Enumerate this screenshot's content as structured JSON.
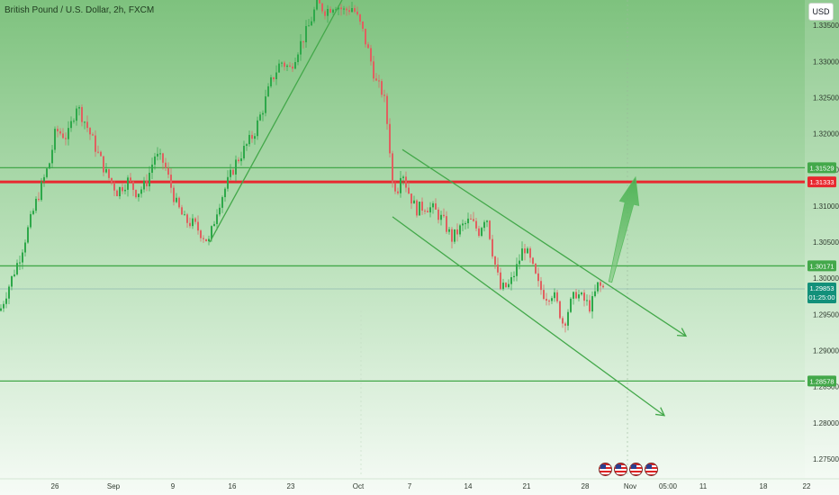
{
  "header": {
    "title": "British Pound / U.S. Dollar, 2h, FXCM",
    "currency_button": "USD"
  },
  "colors": {
    "bg_top": "#7ec27e",
    "bg_bottom": "#f6fbf6",
    "up_candle": "#2ea84a",
    "down_candle": "#e06060",
    "green_line": "#43a84a",
    "red_line": "#e8282f",
    "current_price_line": "#8fb8b0"
  },
  "chart_data": {
    "type": "candlestick",
    "symbol": "British Pound / U.S. Dollar, 2h, FXCM",
    "ylim": [
      1.2725,
      1.3385
    ],
    "y_ticks": [
      "1.33500",
      "1.33000",
      "1.32500",
      "1.32000",
      "1.31500",
      "1.31000",
      "1.30500",
      "1.30000",
      "1.29500",
      "1.29000",
      "1.28500",
      "1.28000",
      "1.27500"
    ],
    "x_ticks": [
      "26",
      "Sep",
      "9",
      "16",
      "23",
      "Oct",
      "7",
      "14",
      "21",
      "28",
      "Nov",
      "05:00",
      "11",
      "18",
      "22"
    ],
    "series_path": [
      [
        0,
        1.2955
      ],
      [
        10,
        1.299
      ],
      [
        22,
        1.303
      ],
      [
        40,
        1.3105
      ],
      [
        55,
        1.316
      ],
      [
        62,
        1.3205
      ],
      [
        75,
        1.3195
      ],
      [
        85,
        1.324
      ],
      [
        95,
        1.3215
      ],
      [
        108,
        1.3175
      ],
      [
        118,
        1.3145
      ],
      [
        130,
        1.312
      ],
      [
        142,
        1.3135
      ],
      [
        152,
        1.3118
      ],
      [
        162,
        1.313
      ],
      [
        172,
        1.317
      ],
      [
        182,
        1.316
      ],
      [
        195,
        1.3105
      ],
      [
        205,
        1.308
      ],
      [
        215,
        1.3075
      ],
      [
        225,
        1.306
      ],
      [
        232,
        1.305
      ],
      [
        242,
        1.31
      ],
      [
        252,
        1.313
      ],
      [
        262,
        1.316
      ],
      [
        272,
        1.318
      ],
      [
        282,
        1.32
      ],
      [
        292,
        1.3235
      ],
      [
        302,
        1.3275
      ],
      [
        312,
        1.33
      ],
      [
        322,
        1.329
      ],
      [
        332,
        1.332
      ],
      [
        342,
        1.3345
      ],
      [
        352,
        1.338
      ],
      [
        362,
        1.337
      ],
      [
        372,
        1.338
      ],
      [
        382,
        1.337
      ],
      [
        392,
        1.3375
      ],
      [
        402,
        1.3345
      ],
      [
        410,
        1.331
      ],
      [
        418,
        1.327
      ],
      [
        426,
        1.3255
      ],
      [
        432,
        1.3195
      ],
      [
        436,
        1.313
      ],
      [
        442,
        1.3125
      ],
      [
        446,
        1.3155
      ],
      [
        452,
        1.3125
      ],
      [
        462,
        1.3095
      ],
      [
        472,
        1.31
      ],
      [
        482,
        1.3095
      ],
      [
        492,
        1.308
      ],
      [
        502,
        1.3055
      ],
      [
        512,
        1.307
      ],
      [
        522,
        1.308
      ],
      [
        532,
        1.3065
      ],
      [
        540,
        1.309
      ],
      [
        548,
        1.303
      ],
      [
        556,
        1.2985
      ],
      [
        566,
        1.299
      ],
      [
        574,
        1.3015
      ],
      [
        582,
        1.3045
      ],
      [
        590,
        1.302
      ],
      [
        598,
        1.299
      ],
      [
        606,
        1.2975
      ],
      [
        614,
        1.298
      ],
      [
        620,
        1.296
      ],
      [
        626,
        1.2935
      ],
      [
        632,
        1.296
      ],
      [
        640,
        1.298
      ],
      [
        648,
        1.297
      ],
      [
        656,
        1.296
      ],
      [
        664,
        1.299
      ],
      [
        672,
        1.2985
      ]
    ],
    "horizontal_levels": [
      {
        "price": 1.31529,
        "label": "1.31529",
        "color": "green"
      },
      {
        "price": 1.31333,
        "label": "1.31333",
        "color": "red"
      },
      {
        "price": 1.30171,
        "label": "1.30171",
        "color": "green"
      },
      {
        "price": 1.28578,
        "label": "1.28578",
        "color": "green"
      }
    ],
    "current_price": {
      "price": 1.29853,
      "label": "1.29853",
      "countdown": "01:25:00"
    },
    "drawings": {
      "uptrend_line": {
        "from": [
          233,
          1.305
        ],
        "to": [
          380,
          1.3385
        ]
      },
      "channel_upper": {
        "from": [
          447,
          1.3178
        ],
        "to": [
          762,
          1.292
        ]
      },
      "channel_lower": {
        "from": [
          436,
          1.3085
        ],
        "to": [
          738,
          1.281
        ]
      },
      "projection_arrow": {
        "from": [
          678,
          1.2995
        ],
        "to": [
          706,
          1.314
        ]
      }
    },
    "legend": "none",
    "grid": false
  },
  "events": [
    "us-flag-icon",
    "us-flag-icon",
    "us-flag-icon",
    "us-flag-icon"
  ]
}
